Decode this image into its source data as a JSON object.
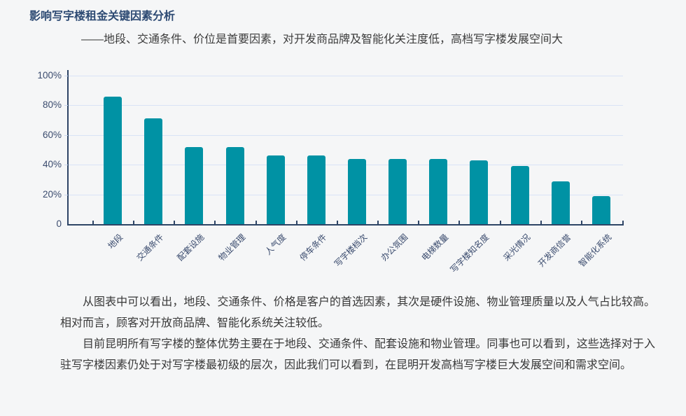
{
  "page": {
    "background": "#f5f6f7"
  },
  "header": {
    "title": "影响写字楼租金关键因素分析",
    "subtitle": "——地段、交通条件、价位是首要因素，对开发商品牌及智能化关注度低，高档写字楼发展空间大"
  },
  "chart_data": {
    "type": "bar",
    "title": "",
    "categories": [
      "地段",
      "交通条件",
      "配套设施",
      "物业管理",
      "人气度",
      "停车条件",
      "写字楼档次",
      "办公氛围",
      "电梯数量",
      "写字楼知名度",
      "采光情况",
      "开发商信誉",
      "智能化系统"
    ],
    "values": [
      86,
      71,
      52,
      52,
      46,
      46,
      44,
      44,
      44,
      43,
      39,
      29,
      19
    ],
    "xlabel": "",
    "ylabel": "",
    "ylim": [
      0,
      100
    ],
    "yticks": [
      "0",
      "20%",
      "40%",
      "60%",
      "80%",
      "100%"
    ],
    "grid": true,
    "legend_position": "none",
    "bar_color": "#0092a4",
    "axis_color": "#2e4566",
    "grid_color": "#d9e3f6",
    "tick_label_color": "#3a4b6e"
  },
  "analysis": {
    "paragraph1": "从图表中可以看出，地段、交通条件、价格是客户的首选因素，其次是硬件设施、物业管理质量以及人气占比较高。相对而言，顾客对开放商品牌、智能化系统关注较低。",
    "paragraph2": "目前昆明所有写字楼的整体优势主要在于地段、交通条件、配套设施和物业管理。同事也可以看到，这些选择对于入驻写字楼因素仍处于对写字楼最初级的层次，因此我们可以看到，在昆明开发高档写字楼巨大发展空间和需求空间。"
  }
}
